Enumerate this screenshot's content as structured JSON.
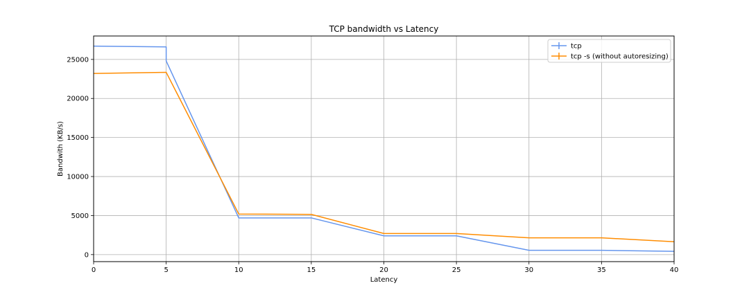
{
  "chart_data": {
    "type": "line",
    "title": "TCP bandwidth vs Latency",
    "xlabel": "Latency",
    "ylabel": "Bandwith (KB/s)",
    "xlim": [
      0,
      40
    ],
    "ylim": [
      -900,
      28000
    ],
    "xticks": [
      0,
      5,
      10,
      15,
      20,
      25,
      30,
      35,
      40
    ],
    "yticks": [
      0,
      5000,
      10000,
      15000,
      20000,
      25000
    ],
    "grid": true,
    "legend_position": "top-right",
    "series": [
      {
        "name": "tcp",
        "color": "#6495ED",
        "x": [
          0,
          5,
          5,
          10,
          15,
          20,
          25,
          30,
          35,
          40
        ],
        "y": [
          26700,
          26600,
          24800,
          4700,
          4700,
          2400,
          2400,
          550,
          550,
          420
        ]
      },
      {
        "name": "tcp -s (without autoresizing)",
        "color": "#FF8C00",
        "x": [
          0,
          5,
          10,
          15,
          20,
          25,
          30,
          35,
          40
        ],
        "y": [
          23200,
          23350,
          5200,
          5150,
          2700,
          2700,
          2150,
          2150,
          1650
        ]
      }
    ]
  }
}
